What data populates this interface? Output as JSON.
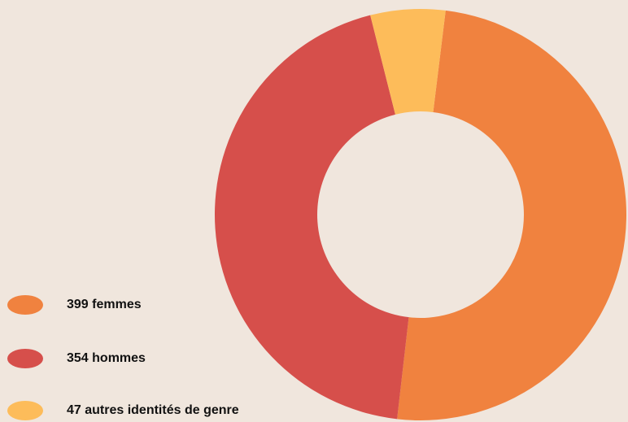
{
  "chart_data": {
    "type": "donut",
    "categories": [
      "399 femmes",
      "354 hommes",
      "47 autres identités de genre"
    ],
    "values": [
      399,
      354,
      47
    ],
    "colors": [
      "#f0823f",
      "#d64f4b",
      "#fdbc5a"
    ]
  }
}
